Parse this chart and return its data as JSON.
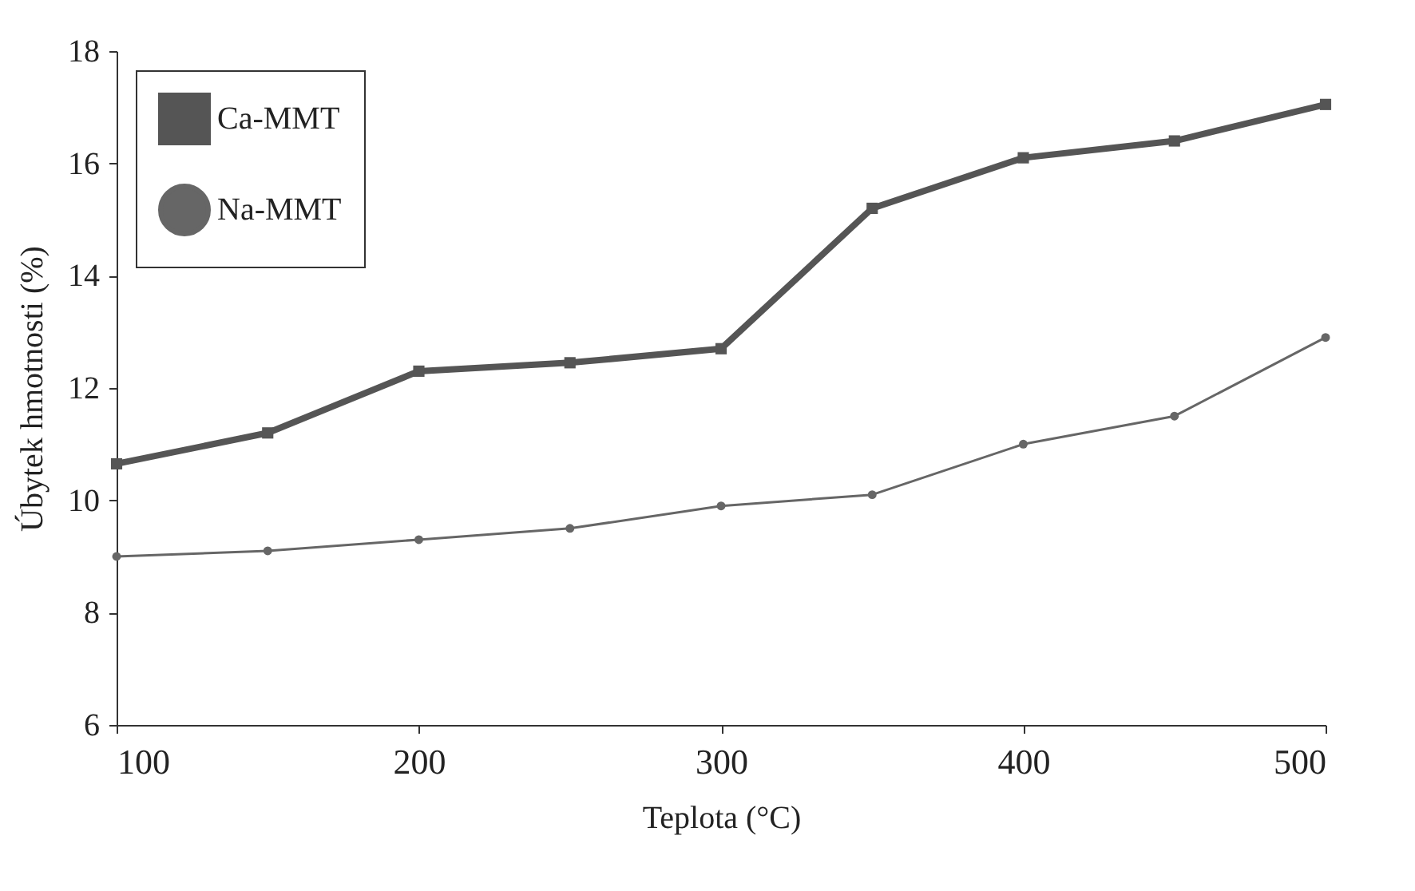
{
  "chart_data": {
    "type": "line",
    "xlabel": "Teplota (°C)",
    "ylabel": "Úbytek hmotnosti (%)",
    "x": [
      100,
      150,
      200,
      250,
      300,
      350,
      400,
      450,
      500
    ],
    "series": [
      {
        "name": "Ca-MMT",
        "color": "#555555",
        "marker": "square",
        "values": [
          10.65,
          11.2,
          12.3,
          12.45,
          12.7,
          15.2,
          16.1,
          16.4,
          17.05
        ]
      },
      {
        "name": "Na-MMT",
        "color": "#666666",
        "marker": "circle",
        "values": [
          9.0,
          9.1,
          9.3,
          9.5,
          9.9,
          10.1,
          11.0,
          11.5,
          12.9
        ]
      }
    ],
    "xlim": [
      100,
      500
    ],
    "xticks": [
      100,
      200,
      300,
      400,
      500
    ],
    "ylim": [
      6,
      18
    ],
    "yticks": [
      6,
      8,
      10,
      12,
      14,
      16,
      18
    ],
    "grid": false,
    "legend": "top left",
    "line_style": "solid"
  }
}
